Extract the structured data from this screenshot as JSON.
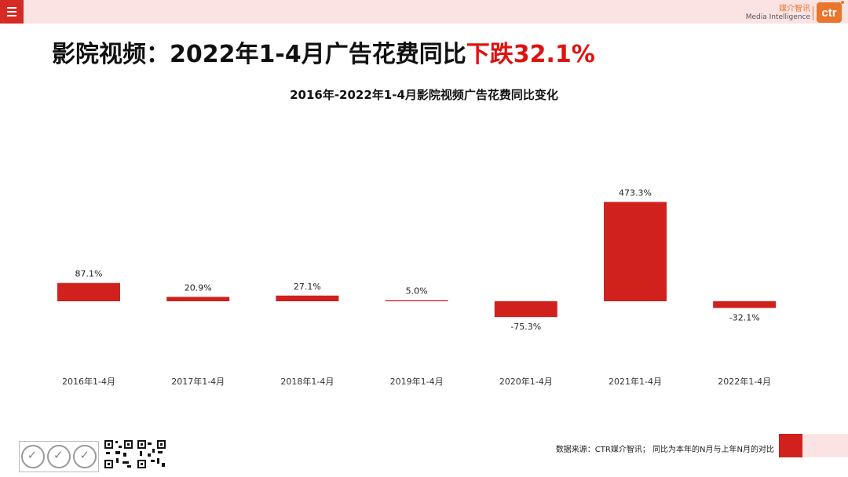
{
  "header": {
    "brand_cn": "媒介智讯",
    "brand_en": "Media Intelligence",
    "logo_text": "ctr"
  },
  "title": {
    "main": "影院视频：2022年1-4月广告花费同比",
    "highlight": "下跌32.1%"
  },
  "chart_data": {
    "type": "bar",
    "title": "2016年-2022年1-4月影院视频广告花费同比变化",
    "categories": [
      "2016年1-4月",
      "2017年1-4月",
      "2018年1-4月",
      "2019年1-4月",
      "2020年1-4月",
      "2021年1-4月",
      "2022年1-4月"
    ],
    "values": [
      87.1,
      20.9,
      27.1,
      5.0,
      -75.3,
      473.3,
      -32.1
    ],
    "value_labels": [
      "87.1%",
      "20.9%",
      "27.1%",
      "5.0%",
      "-75.3%",
      "473.3%",
      "-32.1%"
    ],
    "unit": "%",
    "bar_color": "#d0211d",
    "grid": false,
    "legend": "none"
  },
  "footer": {
    "source_note": "数据来源：CTR媒介智讯；  同比为本年的N月与上年N月的对比"
  },
  "colors": {
    "accent_red": "#d62a24",
    "highlight_red": "#e0120f",
    "brand_orange": "#e8762d",
    "pink_bar": "#fbe3e3"
  }
}
